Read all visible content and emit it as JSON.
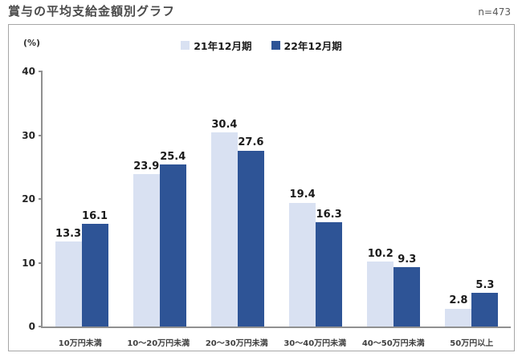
{
  "page": {
    "title": "賞与の平均支給金額別グラフ",
    "sample_label": "n=473"
  },
  "chart_data": {
    "type": "bar",
    "title": "賞与の平均支給金額別グラフ",
    "unit_label": "(%)",
    "categories": [
      "10万円未満",
      "10〜20万円未満",
      "20〜30万円未満",
      "30〜40万円未満",
      "40〜50万円未満",
      "50万円以上"
    ],
    "series": [
      {
        "name": "21年12月期",
        "color": "#d9e1f2",
        "values": [
          13.3,
          23.9,
          30.4,
          19.4,
          10.2,
          2.8
        ]
      },
      {
        "name": "22年12月期",
        "color": "#2e5496",
        "values": [
          16.1,
          25.4,
          27.6,
          16.3,
          9.3,
          5.3
        ]
      }
    ],
    "ylim": [
      0,
      40
    ],
    "yticks": [
      0,
      10,
      20,
      30,
      40
    ],
    "grid": false,
    "legend_position": "top-center"
  }
}
